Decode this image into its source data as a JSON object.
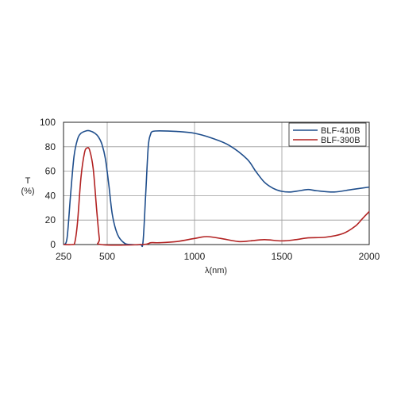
{
  "chart_data": {
    "type": "line",
    "title": "",
    "xlabel": "λ(nm)",
    "ylabel_line1": "T",
    "ylabel_line2": "(%)",
    "xlim": [
      250,
      2000
    ],
    "ylim": [
      0,
      100
    ],
    "x_ticks": [
      250,
      500,
      1000,
      1500,
      2000
    ],
    "y_ticks": [
      0,
      20,
      40,
      60,
      80,
      100
    ],
    "grid": true,
    "legend_position": "top-right",
    "series": [
      {
        "name": "BLF-410B",
        "color": "#1f4e8c",
        "points": [
          [
            250,
            0
          ],
          [
            270,
            5
          ],
          [
            290,
            40
          ],
          [
            310,
            72
          ],
          [
            330,
            86
          ],
          [
            350,
            91
          ],
          [
            380,
            93
          ],
          [
            400,
            93
          ],
          [
            430,
            91
          ],
          [
            450,
            88
          ],
          [
            470,
            82
          ],
          [
            490,
            70
          ],
          [
            510,
            48
          ],
          [
            530,
            24
          ],
          [
            560,
            8
          ],
          [
            600,
            1
          ],
          [
            640,
            0
          ],
          [
            690,
            0
          ],
          [
            705,
            2
          ],
          [
            720,
            40
          ],
          [
            735,
            80
          ],
          [
            748,
            90
          ],
          [
            760,
            92.5
          ],
          [
            800,
            93
          ],
          [
            900,
            92.5
          ],
          [
            1000,
            91
          ],
          [
            1100,
            87
          ],
          [
            1200,
            81
          ],
          [
            1300,
            70
          ],
          [
            1350,
            60
          ],
          [
            1400,
            51
          ],
          [
            1450,
            46
          ],
          [
            1500,
            43.5
          ],
          [
            1550,
            43
          ],
          [
            1600,
            44
          ],
          [
            1650,
            45
          ],
          [
            1700,
            44
          ],
          [
            1800,
            43
          ],
          [
            1900,
            45
          ],
          [
            2000,
            47
          ]
        ]
      },
      {
        "name": "BLF-390B",
        "color": "#b22222",
        "points": [
          [
            250,
            0
          ],
          [
            300,
            0
          ],
          [
            315,
            2
          ],
          [
            330,
            18
          ],
          [
            350,
            55
          ],
          [
            370,
            75
          ],
          [
            385,
            79
          ],
          [
            400,
            77
          ],
          [
            420,
            62
          ],
          [
            440,
            28
          ],
          [
            455,
            5
          ],
          [
            465,
            0
          ],
          [
            700,
            0
          ],
          [
            750,
            1.5
          ],
          [
            800,
            1.5
          ],
          [
            900,
            2.5
          ],
          [
            1000,
            5
          ],
          [
            1070,
            6.5
          ],
          [
            1150,
            5
          ],
          [
            1250,
            2.5
          ],
          [
            1320,
            3
          ],
          [
            1400,
            4
          ],
          [
            1500,
            3
          ],
          [
            1580,
            4
          ],
          [
            1650,
            5.5
          ],
          [
            1750,
            6
          ],
          [
            1850,
            9
          ],
          [
            1920,
            15
          ],
          [
            1960,
            21
          ],
          [
            2000,
            27
          ]
        ]
      }
    ]
  }
}
